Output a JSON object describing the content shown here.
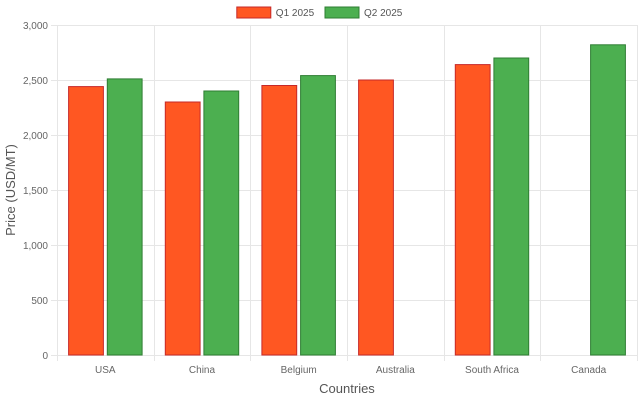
{
  "chart_data": {
    "type": "bar",
    "categories": [
      "USA",
      "China",
      "Belgium",
      "Australia",
      "South Africa",
      "Canada"
    ],
    "series": [
      {
        "name": "Q1 2025",
        "values": [
          2440,
          2300,
          2450,
          2500,
          2640,
          null
        ],
        "color": "#ff5722",
        "border": "#c62828"
      },
      {
        "name": "Q2 2025",
        "values": [
          2510,
          2400,
          2540,
          null,
          2700,
          2820
        ],
        "color": "#4caf50",
        "border": "#2e7d32"
      }
    ],
    "xlabel": "Countries",
    "ylabel": "Price (USD/MT)",
    "ylim": [
      0,
      3000
    ],
    "yticks": [
      0,
      500,
      1000,
      1500,
      2000,
      2500,
      3000
    ],
    "ytick_labels": [
      "0",
      "500",
      "1,000",
      "1,500",
      "2,000",
      "2,500",
      "3,000"
    ],
    "grid": true,
    "legend_position": "top-center"
  }
}
